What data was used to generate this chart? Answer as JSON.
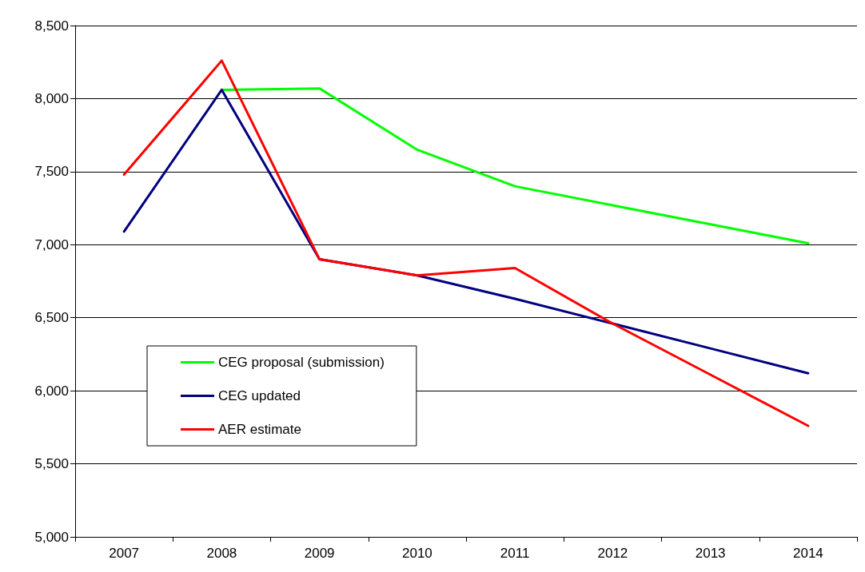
{
  "chart_data": {
    "type": "line",
    "categories": [
      "2007",
      "2008",
      "2009",
      "2010",
      "2011",
      "2012",
      "2013",
      "2014"
    ],
    "series": [
      {
        "name": "CEG proposal (submission)",
        "color": "#00ff00",
        "values": [
          null,
          8060,
          8070,
          7650,
          7400,
          7270,
          7140,
          7010
        ]
      },
      {
        "name": "CEG updated",
        "color": "#000080",
        "values": [
          7090,
          8060,
          6900,
          6790,
          6630,
          6460,
          6290,
          6120
        ]
      },
      {
        "name": "AER estimate",
        "color": "#ff0000",
        "values": [
          7480,
          8260,
          6900,
          6790,
          6840,
          6460,
          6110,
          5760
        ]
      }
    ],
    "ylim": [
      5000,
      8500
    ],
    "yticks": [
      {
        "value": 5000,
        "label": "5,000"
      },
      {
        "value": 5500,
        "label": "5,500"
      },
      {
        "value": 6000,
        "label": "6,000"
      },
      {
        "value": 6500,
        "label": "6,500"
      },
      {
        "value": 7000,
        "label": "7,000"
      },
      {
        "value": 7500,
        "label": "7,500"
      },
      {
        "value": 8000,
        "label": "8,000"
      },
      {
        "value": 8500,
        "label": "8,500"
      }
    ],
    "grid": "y",
    "legend": "bottom left",
    "marker": "none",
    "line_style": "solid"
  }
}
